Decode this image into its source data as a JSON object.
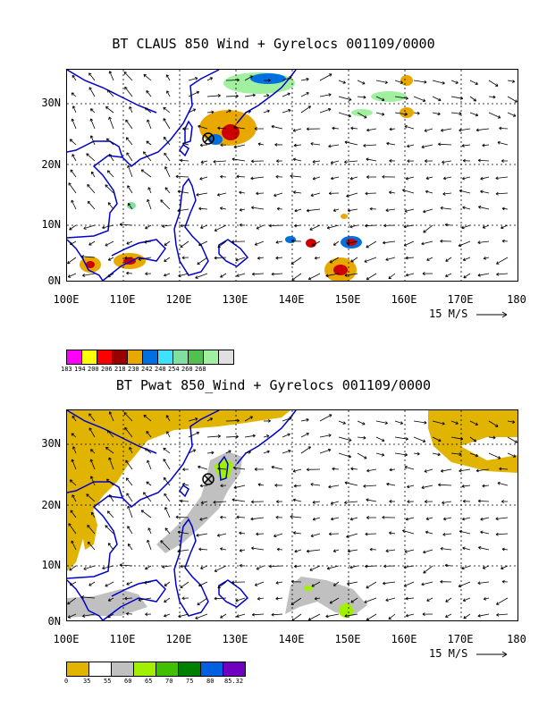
{
  "panel1": {
    "title": "BT CLAUS 850 Wind + Gyrelocs 001109/0000",
    "lat_labels": [
      "30N",
      "20N",
      "10N",
      "0N"
    ],
    "lon_labels": [
      "100E",
      "110E",
      "120E",
      "130E",
      "140E",
      "150E",
      "160E",
      "170E",
      "180"
    ],
    "vector_scale_label": "15 M/S",
    "colorbar": {
      "labels": [
        "183",
        "194",
        "200",
        "206",
        "218",
        "230",
        "242",
        "248",
        "254",
        "260",
        "268"
      ],
      "colors": [
        "#ff00ff",
        "#ffff00",
        "#ff0000",
        "#990000",
        "#e8a800",
        "#0070e0",
        "#40e0ff",
        "#80e0a0",
        "#50c050",
        "#a0f0a0",
        "#e0e0e0"
      ]
    }
  },
  "panel2": {
    "title": "BT Pwat 850_Wind + Gyrelocs 001109/0000",
    "lat_labels": [
      "30N",
      "20N",
      "10N",
      "0N"
    ],
    "lon_labels": [
      "100E",
      "110E",
      "120E",
      "130E",
      "140E",
      "150E",
      "160E",
      "170E",
      "180"
    ],
    "vector_scale_label": "15 M/S",
    "colorbar": {
      "labels": [
        "0",
        "35",
        "55",
        "60",
        "65",
        "70",
        "75",
        "80",
        "85.32"
      ],
      "colors": [
        "#e0b400",
        "#ffffff",
        "#c0c0c0",
        "#a0f000",
        "#40c000",
        "#008000",
        "#0060e0",
        "#7000c0"
      ]
    }
  },
  "colors": {
    "coast": "#0000cc",
    "grid": "#000000"
  }
}
